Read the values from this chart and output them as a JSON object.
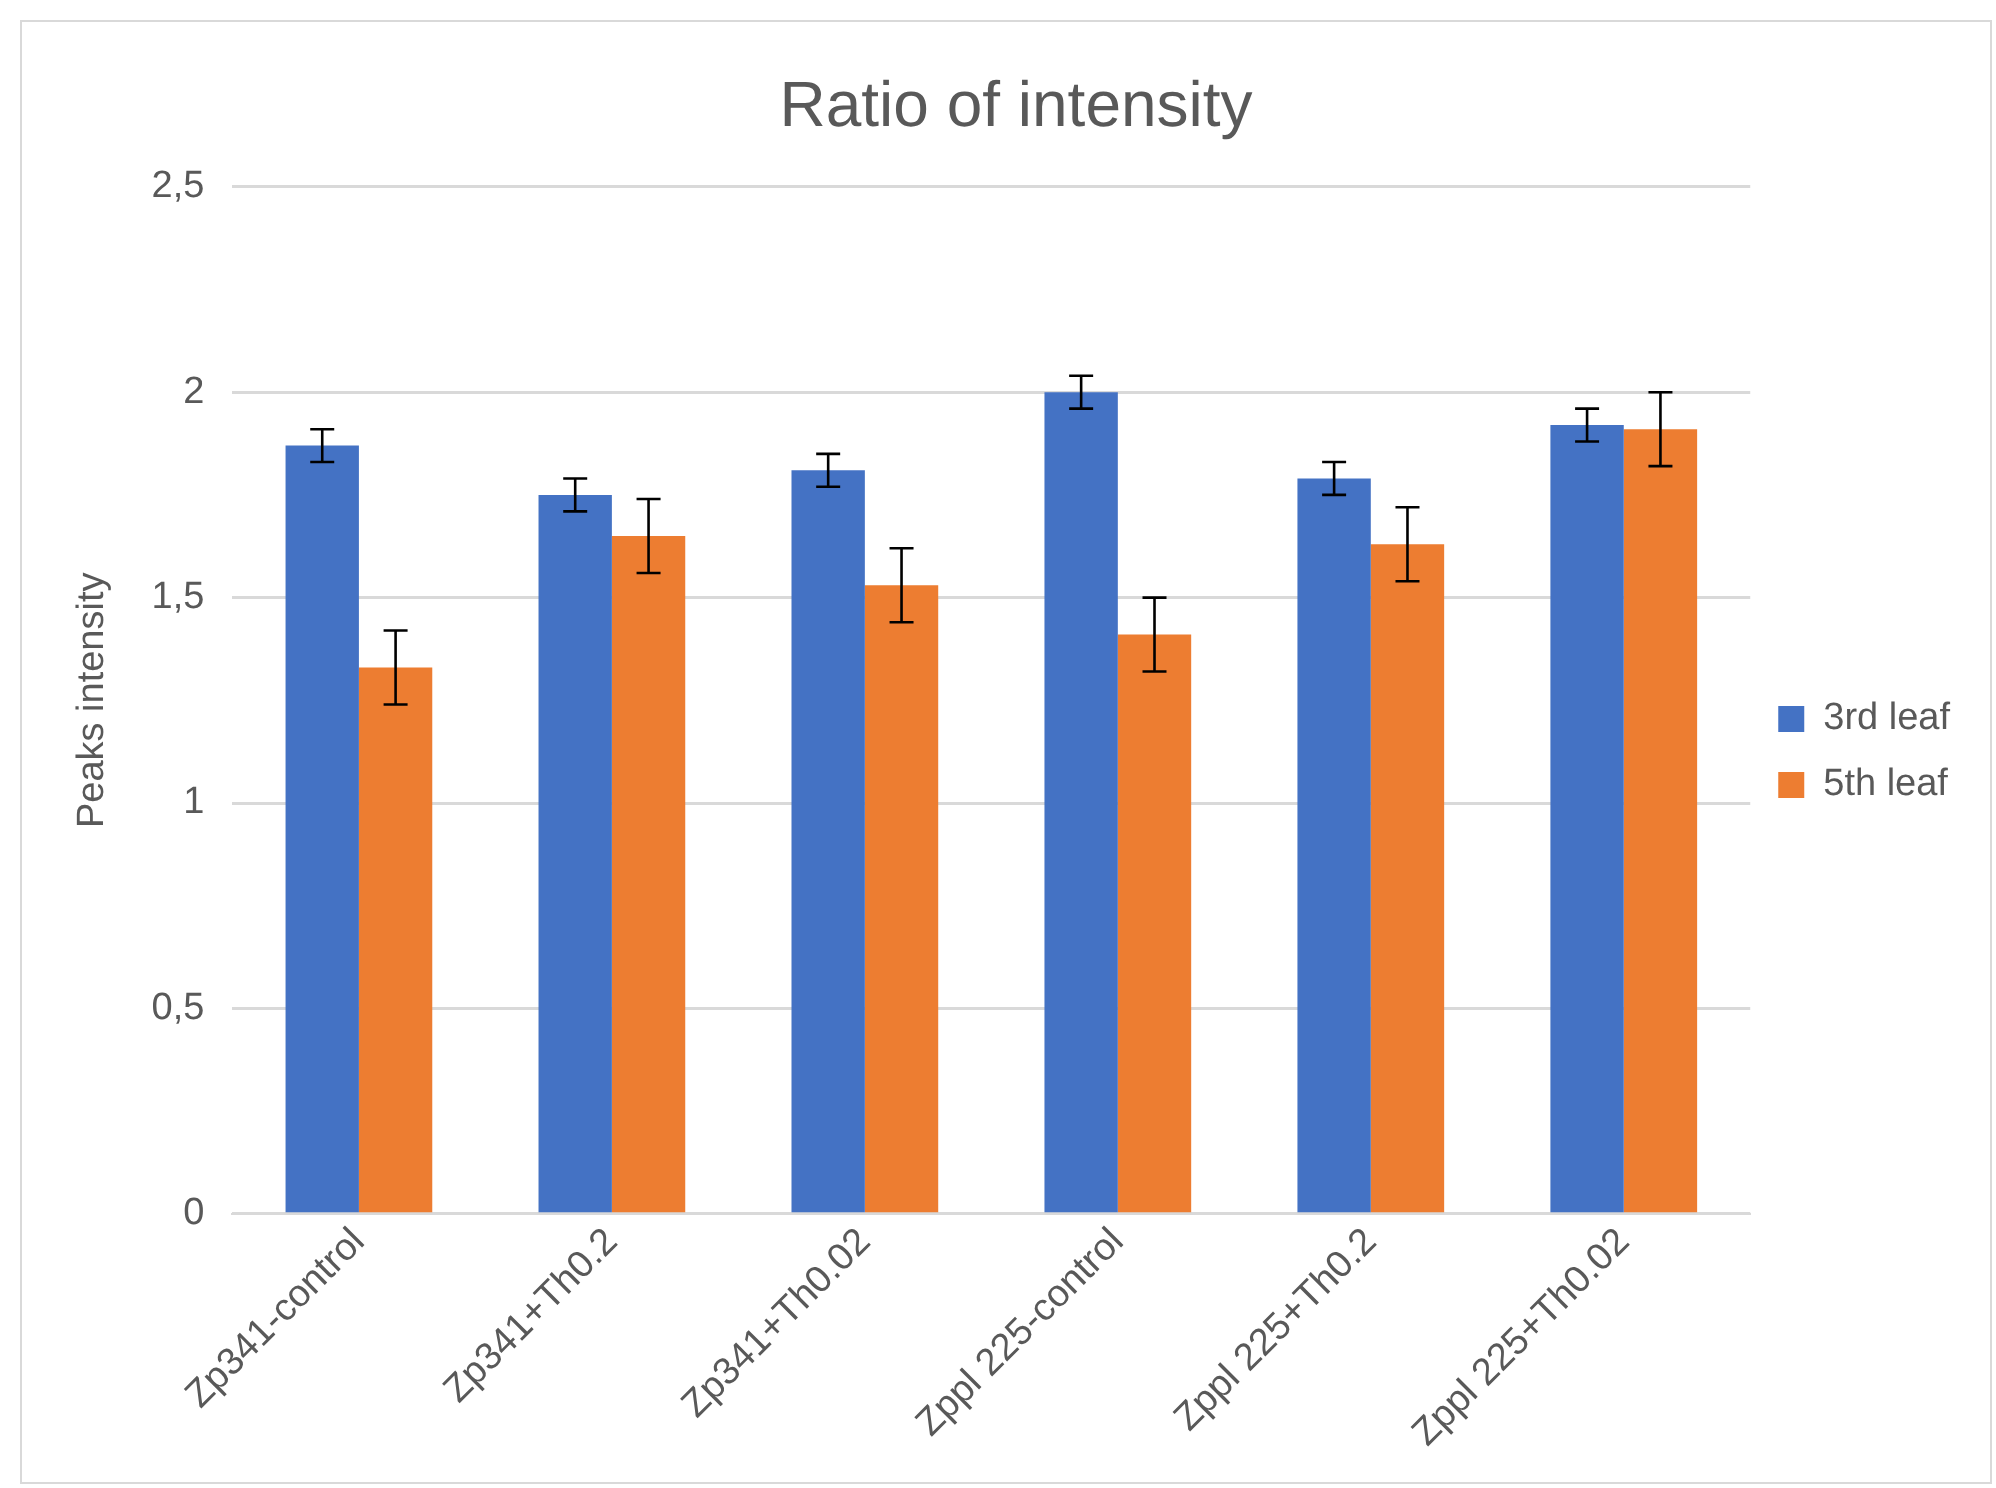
{
  "chart_data": {
    "type": "bar",
    "title": "Ratio of intensity",
    "ylabel": "Peaks intensity",
    "categories": [
      "Zp341-control",
      "Zp341+Th0.2",
      "Zp341+Th0.02",
      "Zppl 225-control",
      "Zppl 225+Th0.2",
      "Zppl 225+Th0.02"
    ],
    "series": [
      {
        "name": "3rd leaf",
        "color": "#4472c4",
        "values": [
          1.87,
          1.75,
          1.81,
          2.0,
          1.79,
          1.92
        ],
        "errors": [
          0.04,
          0.04,
          0.04,
          0.04,
          0.04,
          0.04
        ]
      },
      {
        "name": "5th leaf",
        "color": "#ed7d31",
        "values": [
          1.33,
          1.65,
          1.53,
          1.41,
          1.63,
          1.91
        ],
        "errors": [
          0.09,
          0.09,
          0.09,
          0.09,
          0.09,
          0.09
        ]
      }
    ],
    "ylim": [
      0,
      2.5
    ],
    "yticks": [
      {
        "value": 0,
        "label": "0"
      },
      {
        "value": 0.5,
        "label": "0,5"
      },
      {
        "value": 1,
        "label": "1"
      },
      {
        "value": 1.5,
        "label": "1,5"
      },
      {
        "value": 2,
        "label": "2"
      },
      {
        "value": 2.5,
        "label": "2,5"
      }
    ],
    "grid": "y",
    "legend": "right"
  }
}
